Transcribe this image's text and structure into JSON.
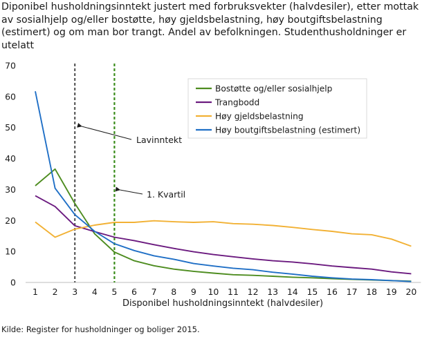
{
  "title": "Diponibel husholdningsinntekt justert med forbruksvekter (halvdesiler), etter mottak av sosialhjelp og/eller bostøtte, høy gjeldsbelastning, høy boutgiftsbelastning (estimert) og om man bor trangt. Andel av befolkningen. Studenthusholdninger er utelatt",
  "source": "Kilde: Register for husholdninger og boliger 2015.",
  "chart_data": {
    "type": "line",
    "title": "Diponibel husholdningsinntekt justert med forbruksvekter (halvdesiler), etter mottak av sosialhjelp og/eller bostøtte, høy gjeldsbelastning, høy boutgiftsbelastning (estimert) og om man bor trangt. Andel av befolkningen. Studenthusholdninger er utelatt",
    "xlabel": "Disponibel husholdningsinntekt (halvdesiler)",
    "ylabel": "",
    "x": [
      1,
      2,
      3,
      4,
      5,
      6,
      7,
      8,
      9,
      10,
      11,
      12,
      13,
      14,
      15,
      16,
      17,
      18,
      19,
      20
    ],
    "ylim": [
      0,
      70
    ],
    "yticks": [
      0,
      10,
      20,
      30,
      40,
      50,
      60,
      70
    ],
    "grid": false,
    "legend_position": "top-right",
    "series": [
      {
        "name": "Bostøtte og/eller sosialhjelp",
        "color": "#4d8c1f",
        "values": [
          31.2,
          36.6,
          25.5,
          15.7,
          9.8,
          7.0,
          5.4,
          4.3,
          3.6,
          3.0,
          2.5,
          2.3,
          2.0,
          1.7,
          1.5,
          1.2,
          1.0,
          0.8,
          0.6,
          0.4
        ]
      },
      {
        "name": "Trangbodd",
        "color": "#6b1a7f",
        "values": [
          28.0,
          24.5,
          18.3,
          16.4,
          14.6,
          13.5,
          12.2,
          11.0,
          9.9,
          9.0,
          8.3,
          7.6,
          7.0,
          6.6,
          6.0,
          5.3,
          4.8,
          4.3,
          3.4,
          2.8
        ]
      },
      {
        "name": "Høy gjeldsbelastning",
        "color": "#f2b134",
        "values": [
          19.5,
          14.6,
          17.2,
          18.5,
          19.4,
          19.4,
          19.9,
          19.6,
          19.4,
          19.6,
          19.0,
          18.8,
          18.4,
          17.8,
          17.1,
          16.5,
          15.7,
          15.4,
          14.0,
          11.7
        ]
      },
      {
        "name": "Høy boutgiftsbelastning (estimert)",
        "color": "#1f6fc6",
        "values": [
          61.7,
          30.4,
          21.9,
          16.5,
          12.5,
          10.3,
          8.6,
          7.5,
          6.1,
          5.3,
          4.6,
          4.1,
          3.3,
          2.7,
          2.0,
          1.5,
          1.1,
          0.9,
          0.6,
          0.3
        ]
      }
    ],
    "reference_lines": [
      {
        "x": 3,
        "label": "Lavinntekt",
        "color": "#595959",
        "style": "dashed"
      },
      {
        "x": 5,
        "label": "1. Kvartil",
        "color": "#3a8c1a",
        "style": "dashed"
      }
    ]
  }
}
